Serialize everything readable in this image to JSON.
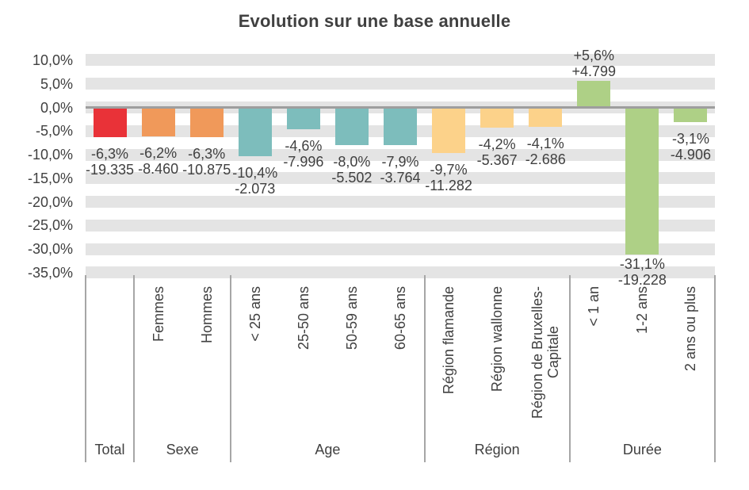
{
  "chart_data": {
    "type": "bar",
    "title": "Evolution sur une base annuelle",
    "xlabel": "",
    "ylabel": "",
    "value_format": "percent (labels show % change and absolute change)",
    "grid": "horizontal gray bands, legend none",
    "y_axis": {
      "max": 10,
      "min": -35,
      "step": 5,
      "tick_labels": [
        "10,0%",
        "5,0%",
        "0,0%",
        "-5,0%",
        "-10,0%",
        "-15,0%",
        "-20,0%",
        "-25,0%",
        "-30,0%",
        "-35,0%"
      ]
    },
    "groups": [
      {
        "name": "Total",
        "color": "#e93238",
        "bars": [
          {
            "label": "Total",
            "axis_label": "",
            "value_pct": -6.3,
            "pct_label": "-6,3%",
            "abs_label": "-19.335"
          }
        ]
      },
      {
        "name": "Sexe",
        "color": "#f0995a",
        "bars": [
          {
            "label": "Femmes",
            "axis_label": "Femmes",
            "value_pct": -6.2,
            "pct_label": "-6,2%",
            "abs_label": "-8.460"
          },
          {
            "label": "Hommes",
            "axis_label": "Hommes",
            "value_pct": -6.3,
            "pct_label": "-6,3%",
            "abs_label": "-10.875"
          }
        ]
      },
      {
        "name": "Age",
        "color": "#7dbdbc",
        "bars": [
          {
            "label": "< 25 ans",
            "axis_label": "< 25 ans",
            "value_pct": -10.4,
            "pct_label": "-10,4%",
            "abs_label": "-2.073"
          },
          {
            "label": "25-50 ans",
            "axis_label": "25-50 ans",
            "value_pct": -4.6,
            "pct_label": "-4,6%",
            "abs_label": "-7.996"
          },
          {
            "label": "50-59 ans",
            "axis_label": "50-59 ans",
            "value_pct": -8.0,
            "pct_label": "-8,0%",
            "abs_label": "-5.502"
          },
          {
            "label": "60-65 ans",
            "axis_label": "60-65 ans",
            "value_pct": -7.9,
            "pct_label": "-7,9%",
            "abs_label": "-3.764"
          }
        ]
      },
      {
        "name": "Région",
        "color": "#fcd28a",
        "bars": [
          {
            "label": "Région flamande",
            "axis_label": "Région flamande",
            "value_pct": -9.7,
            "pct_label": "-9,7%",
            "abs_label": "-11.282"
          },
          {
            "label": "Région wallonne",
            "axis_label": "Région wallonne",
            "value_pct": -4.2,
            "pct_label": "-4,2%",
            "abs_label": "-5.367"
          },
          {
            "label": "Région de Bruxelles-Capitale",
            "axis_label": "Région de Bruxelles-\nCapitale",
            "value_pct": -4.1,
            "pct_label": "-4,1%",
            "abs_label": "-2.686"
          }
        ]
      },
      {
        "name": "Durée",
        "color": "#aed086",
        "bars": [
          {
            "label": "< 1 an",
            "axis_label": "< 1 an",
            "value_pct": 5.6,
            "pct_label": "+5,6%",
            "abs_label": "+4.799"
          },
          {
            "label": "1-2 ans",
            "axis_label": "1-2 ans",
            "value_pct": -31.1,
            "pct_label": "-31,1%",
            "abs_label": "-19.228"
          },
          {
            "label": "2 ans ou plus",
            "axis_label": "2 ans ou plus",
            "value_pct": -3.1,
            "pct_label": "-3,1%",
            "abs_label": "-4.906"
          }
        ]
      }
    ],
    "colors": {
      "text": "#404040",
      "band": "#e4e4e4",
      "zero_line": "#9e9e9e",
      "divider": "#a6a6a6",
      "background": "#ffffff"
    }
  }
}
